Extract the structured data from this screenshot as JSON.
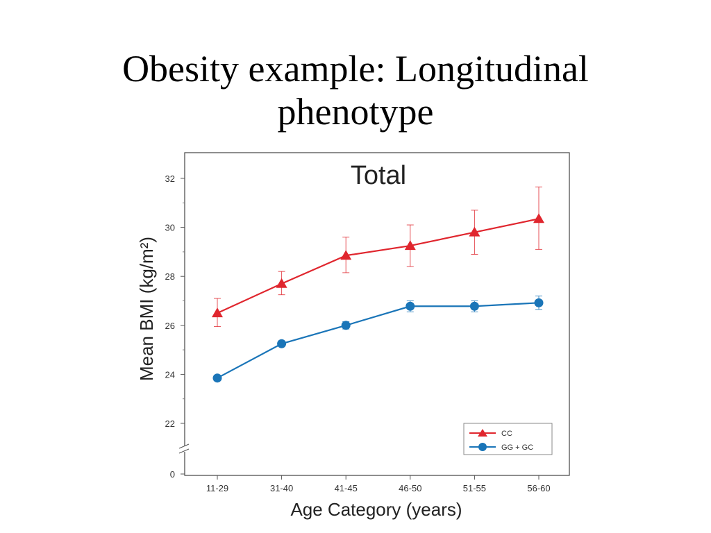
{
  "slide": {
    "title_line1": "Obesity example: Longitudinal",
    "title_line2": "phenotype"
  },
  "chart_data": {
    "type": "line",
    "title": "Total",
    "xlabel": "Age Category (years)",
    "ylabel": "Mean BMI (kg/m²)",
    "categories": [
      "11-29",
      "31-40",
      "41-45",
      "46-50",
      "51-55",
      "56-60"
    ],
    "yticks": [
      0,
      22,
      24,
      26,
      28,
      30,
      32
    ],
    "ylim": [
      21,
      33
    ],
    "axis_break": true,
    "grid": false,
    "legend_position": "bottom-right",
    "series": [
      {
        "name": "CC",
        "marker": "triangle",
        "color": "#e0262e",
        "values": [
          26.5,
          27.7,
          28.85,
          29.25,
          29.8,
          30.35
        ],
        "err_low": [
          25.95,
          27.25,
          28.15,
          28.4,
          28.9,
          29.1
        ],
        "err_high": [
          27.1,
          28.2,
          29.6,
          30.1,
          30.7,
          31.65
        ]
      },
      {
        "name": "GG + GC",
        "marker": "circle",
        "color": "#1a75b8",
        "values": [
          23.85,
          25.25,
          26.0,
          26.78,
          26.78,
          26.92
        ],
        "err_low": [
          23.75,
          25.15,
          25.85,
          26.55,
          26.55,
          26.65
        ],
        "err_high": [
          23.95,
          25.35,
          26.15,
          27.0,
          27.0,
          27.2
        ]
      }
    ]
  }
}
